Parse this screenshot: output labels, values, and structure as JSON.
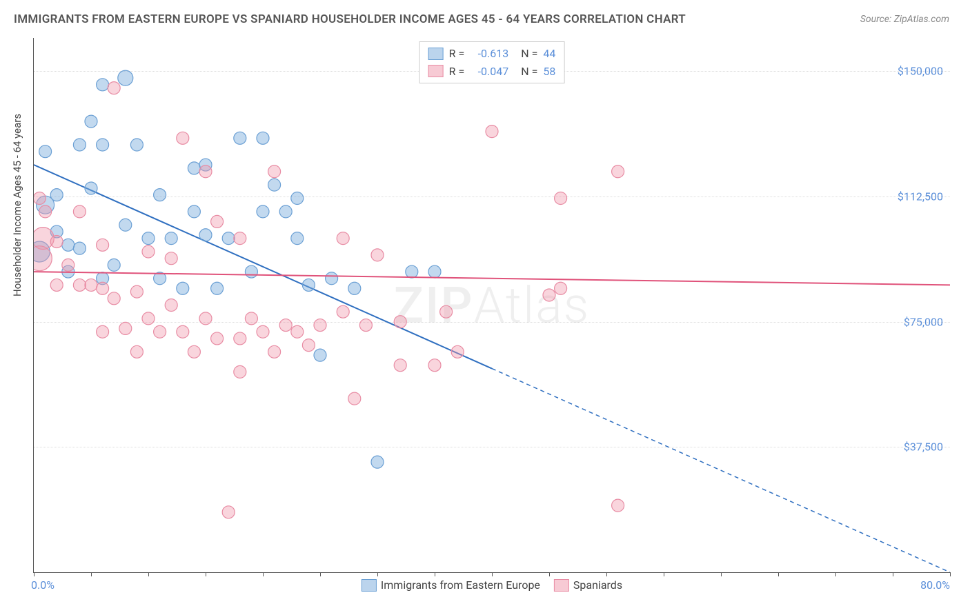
{
  "title": "IMMIGRANTS FROM EASTERN EUROPE VS SPANIARD HOUSEHOLDER INCOME AGES 45 - 64 YEARS CORRELATION CHART",
  "source": "Source: ZipAtlas.com",
  "ylabel": "Householder Income Ages 45 - 64 years",
  "watermark_a": "ZIP",
  "watermark_b": "Atlas",
  "chart": {
    "type": "scatter",
    "xlim": [
      0,
      80
    ],
    "ylim": [
      0,
      160000
    ],
    "x_ticks_minor": [
      0,
      5,
      10,
      15,
      20,
      25,
      30,
      35,
      40,
      45,
      50,
      55,
      60,
      65,
      70,
      75,
      80
    ],
    "x_labels": [
      {
        "v": 0,
        "t": "0.0%"
      },
      {
        "v": 80,
        "t": "80.0%"
      }
    ],
    "y_grid": [
      {
        "v": 37500,
        "t": "$37,500"
      },
      {
        "v": 75000,
        "t": "$75,000"
      },
      {
        "v": 112500,
        "t": "$112,500"
      },
      {
        "v": 150000,
        "t": "$150,000"
      }
    ],
    "background_color": "#ffffff",
    "grid_color": "#dddddd",
    "axis_color": "#555555",
    "value_label_color": "#5b8fd9",
    "series": [
      {
        "name": "Immigrants from Eastern Europe",
        "color_fill": "rgba(120,170,220,0.45)",
        "color_stroke": "#6a9fd4",
        "marker_radius": 9,
        "R": "-0.613",
        "N": "44",
        "regression": {
          "x1": 0,
          "y1": 122000,
          "x2": 80,
          "y2": 0,
          "solid_until_x": 40,
          "color": "#2f6fc0",
          "width": 2
        },
        "points": [
          {
            "x": 1,
            "y": 126000
          },
          {
            "x": 4,
            "y": 128000
          },
          {
            "x": 8,
            "y": 148000,
            "r": 11
          },
          {
            "x": 6,
            "y": 146000
          },
          {
            "x": 2,
            "y": 113000
          },
          {
            "x": 1,
            "y": 110000,
            "r": 13
          },
          {
            "x": 0.5,
            "y": 96000,
            "r": 15
          },
          {
            "x": 5,
            "y": 115000
          },
          {
            "x": 3,
            "y": 98000
          },
          {
            "x": 9,
            "y": 128000
          },
          {
            "x": 10,
            "y": 100000
          },
          {
            "x": 11,
            "y": 113000
          },
          {
            "x": 12,
            "y": 100000
          },
          {
            "x": 14,
            "y": 108000
          },
          {
            "x": 14,
            "y": 121000
          },
          {
            "x": 15,
            "y": 101000
          },
          {
            "x": 15,
            "y": 122000
          },
          {
            "x": 16,
            "y": 85000
          },
          {
            "x": 17,
            "y": 100000
          },
          {
            "x": 18,
            "y": 130000
          },
          {
            "x": 19,
            "y": 90000
          },
          {
            "x": 20,
            "y": 130000
          },
          {
            "x": 20,
            "y": 108000
          },
          {
            "x": 21,
            "y": 116000
          },
          {
            "x": 22,
            "y": 108000
          },
          {
            "x": 23,
            "y": 100000
          },
          {
            "x": 24,
            "y": 86000
          },
          {
            "x": 25,
            "y": 65000
          },
          {
            "x": 26,
            "y": 88000
          },
          {
            "x": 28,
            "y": 85000
          },
          {
            "x": 30,
            "y": 33000
          },
          {
            "x": 33,
            "y": 90000
          },
          {
            "x": 35,
            "y": 90000
          },
          {
            "x": 7,
            "y": 92000
          },
          {
            "x": 6,
            "y": 88000
          },
          {
            "x": 8,
            "y": 104000
          },
          {
            "x": 3,
            "y": 90000
          },
          {
            "x": 5,
            "y": 135000
          },
          {
            "x": 11,
            "y": 88000
          },
          {
            "x": 2,
            "y": 102000
          },
          {
            "x": 4,
            "y": 97000
          },
          {
            "x": 6,
            "y": 128000
          },
          {
            "x": 13,
            "y": 85000
          },
          {
            "x": 23,
            "y": 112000
          }
        ]
      },
      {
        "name": "Spaniards",
        "color_fill": "rgba(240,150,170,0.40)",
        "color_stroke": "#e88ba3",
        "marker_radius": 9,
        "R": "-0.047",
        "N": "58",
        "regression": {
          "x1": 0,
          "y1": 90000,
          "x2": 80,
          "y2": 86000,
          "solid_until_x": 80,
          "color": "#e0527a",
          "width": 2
        },
        "points": [
          {
            "x": 0.5,
            "y": 112000
          },
          {
            "x": 1,
            "y": 108000
          },
          {
            "x": 0.8,
            "y": 100000,
            "r": 16
          },
          {
            "x": 0.5,
            "y": 94000,
            "r": 18
          },
          {
            "x": 2,
            "y": 99000
          },
          {
            "x": 3,
            "y": 92000
          },
          {
            "x": 4,
            "y": 86000
          },
          {
            "x": 5,
            "y": 86000
          },
          {
            "x": 6,
            "y": 98000
          },
          {
            "x": 6,
            "y": 85000
          },
          {
            "x": 7,
            "y": 145000
          },
          {
            "x": 7,
            "y": 82000
          },
          {
            "x": 8,
            "y": 73000
          },
          {
            "x": 9,
            "y": 84000
          },
          {
            "x": 10,
            "y": 96000
          },
          {
            "x": 10,
            "y": 76000
          },
          {
            "x": 11,
            "y": 72000
          },
          {
            "x": 12,
            "y": 80000
          },
          {
            "x": 13,
            "y": 72000
          },
          {
            "x": 13,
            "y": 130000
          },
          {
            "x": 14,
            "y": 66000
          },
          {
            "x": 15,
            "y": 76000
          },
          {
            "x": 15,
            "y": 120000
          },
          {
            "x": 16,
            "y": 70000
          },
          {
            "x": 16,
            "y": 105000
          },
          {
            "x": 17,
            "y": 18000
          },
          {
            "x": 18,
            "y": 70000
          },
          {
            "x": 18,
            "y": 60000
          },
          {
            "x": 18,
            "y": 100000
          },
          {
            "x": 19,
            "y": 76000
          },
          {
            "x": 20,
            "y": 72000
          },
          {
            "x": 21,
            "y": 66000
          },
          {
            "x": 21,
            "y": 120000
          },
          {
            "x": 22,
            "y": 74000
          },
          {
            "x": 23,
            "y": 72000
          },
          {
            "x": 24,
            "y": 68000
          },
          {
            "x": 25,
            "y": 74000
          },
          {
            "x": 27,
            "y": 78000
          },
          {
            "x": 27,
            "y": 100000
          },
          {
            "x": 28,
            "y": 52000
          },
          {
            "x": 29,
            "y": 74000
          },
          {
            "x": 30,
            "y": 95000
          },
          {
            "x": 32,
            "y": 62000
          },
          {
            "x": 35,
            "y": 62000
          },
          {
            "x": 36,
            "y": 78000
          },
          {
            "x": 37,
            "y": 66000
          },
          {
            "x": 40,
            "y": 132000
          },
          {
            "x": 45,
            "y": 83000
          },
          {
            "x": 46,
            "y": 112000
          },
          {
            "x": 46,
            "y": 85000
          },
          {
            "x": 51,
            "y": 120000
          },
          {
            "x": 51,
            "y": 20000
          },
          {
            "x": 2,
            "y": 86000
          },
          {
            "x": 4,
            "y": 108000
          },
          {
            "x": 6,
            "y": 72000
          },
          {
            "x": 9,
            "y": 66000
          },
          {
            "x": 12,
            "y": 94000
          },
          {
            "x": 32,
            "y": 75000
          }
        ]
      }
    ],
    "legend_top": {
      "rows": [
        {
          "swatch": "blue",
          "r_label": "R =",
          "r_val": "-0.613",
          "n_label": "N =",
          "n_val": "44"
        },
        {
          "swatch": "pink",
          "r_label": "R =",
          "r_val": "-0.047",
          "n_label": "N =",
          "n_val": "58"
        }
      ]
    },
    "legend_bottom": [
      {
        "swatch": "blue",
        "label": "Immigrants from Eastern Europe"
      },
      {
        "swatch": "pink",
        "label": "Spaniards"
      }
    ]
  }
}
